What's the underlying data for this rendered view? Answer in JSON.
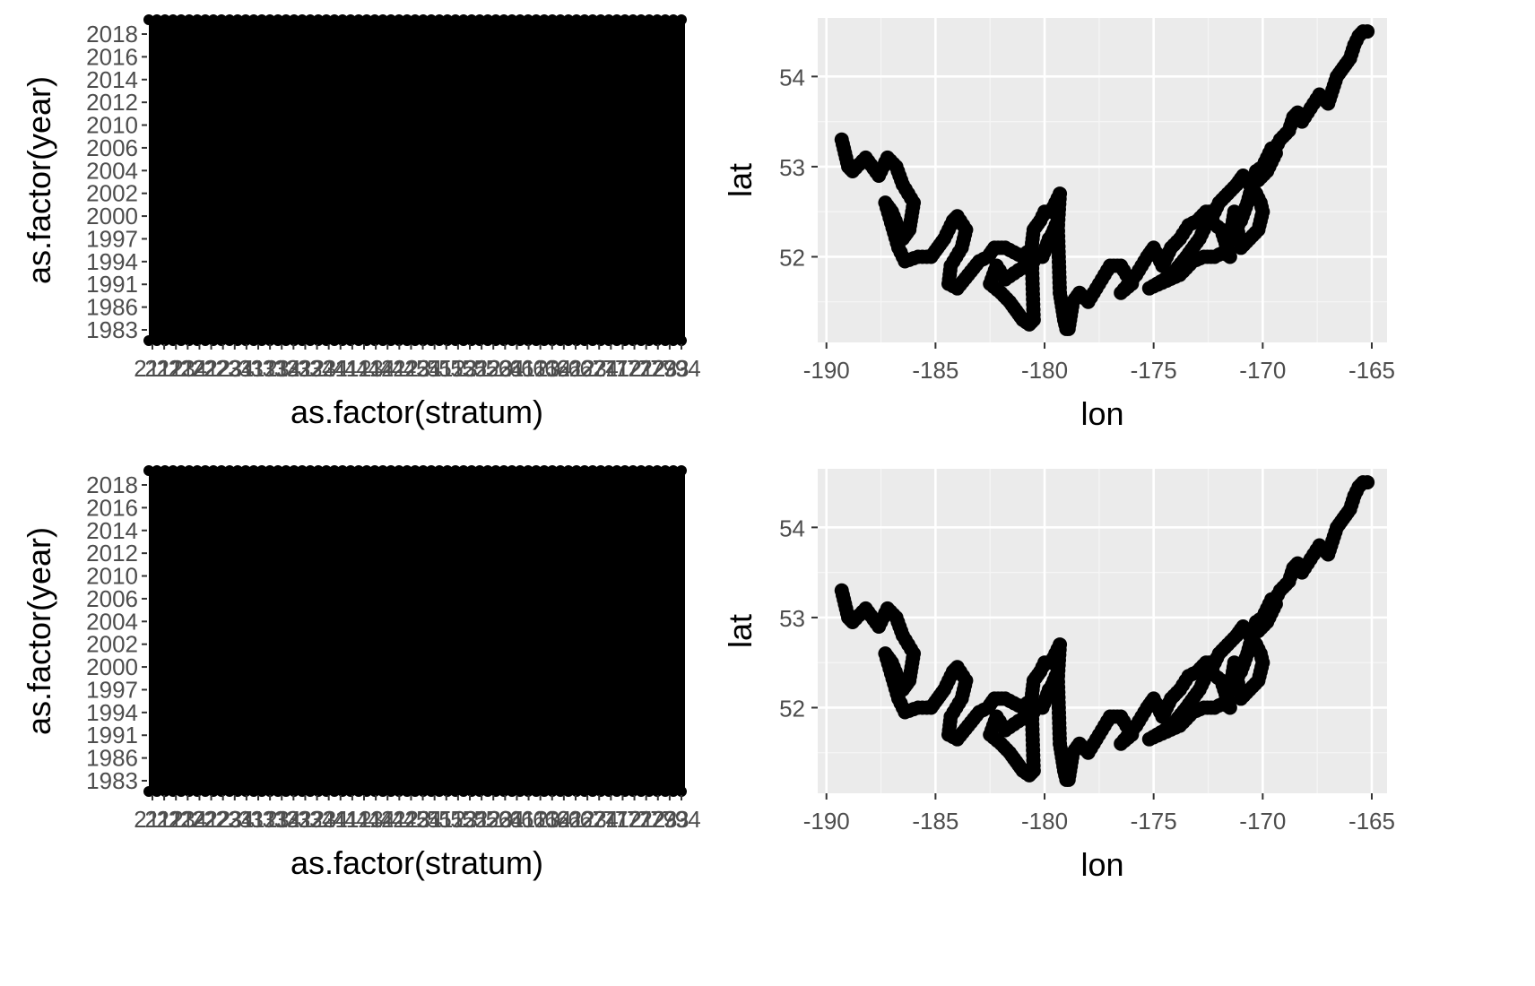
{
  "chart_data": [
    {
      "type": "scatter",
      "panel": "top-left",
      "xlabel": "as.factor(stratum)",
      "ylabel": "as.factor(year)",
      "y_tick_labels": [
        "1983",
        "1986",
        "1991",
        "1994",
        "1997",
        "2000",
        "2002",
        "2004",
        "2006",
        "2010",
        "2012",
        "2014",
        "2016",
        "2018"
      ],
      "x_tick_labels": [
        "211",
        "212",
        "213",
        "214",
        "221",
        "222",
        "223",
        "224",
        "311",
        "312",
        "313",
        "314",
        "321",
        "322",
        "323",
        "324",
        "411",
        "412",
        "413",
        "414",
        "421",
        "422",
        "423",
        "424",
        "511",
        "512",
        "513",
        "521",
        "522",
        "523",
        "524",
        "611",
        "612",
        "613",
        "614",
        "621",
        "622",
        "623",
        "624",
        "711",
        "712",
        "721",
        "722",
        "723",
        "793",
        "794"
      ],
      "x_range_label": [
        "211",
        "794"
      ],
      "note_points_dense": true,
      "background": "#000000",
      "grid": true
    },
    {
      "type": "scatter",
      "panel": "top-right",
      "xlabel": "lon",
      "ylabel": "lat",
      "x_ticks": [
        -190,
        -185,
        -180,
        -175,
        -170,
        -165
      ],
      "y_ticks": [
        52,
        53,
        54
      ],
      "xlim": [
        -190.4,
        -164.3
      ],
      "ylim": [
        51.05,
        54.65
      ],
      "grid": true,
      "background": "#ebebeb",
      "point_color": "#000000",
      "path": [
        [
          -189.3,
          53.3
        ],
        [
          -189.2,
          53.2
        ],
        [
          -189.0,
          53.0
        ],
        [
          -188.8,
          52.95
        ],
        [
          -188.2,
          53.1
        ],
        [
          -187.6,
          52.9
        ],
        [
          -187.2,
          53.1
        ],
        [
          -186.8,
          53.0
        ],
        [
          -186.5,
          52.8
        ],
        [
          -186.0,
          52.6
        ],
        [
          -186.2,
          52.3
        ],
        [
          -186.5,
          52.2
        ],
        [
          -187.0,
          52.5
        ],
        [
          -187.3,
          52.6
        ],
        [
          -186.7,
          52.1
        ],
        [
          -186.4,
          51.95
        ],
        [
          -185.8,
          52.0
        ],
        [
          -185.2,
          52.0
        ],
        [
          -184.9,
          52.1
        ],
        [
          -184.6,
          52.2
        ],
        [
          -184.2,
          52.4
        ],
        [
          -184.0,
          52.45
        ],
        [
          -183.6,
          52.3
        ],
        [
          -183.8,
          52.1
        ],
        [
          -184.3,
          51.9
        ],
        [
          -184.4,
          51.7
        ],
        [
          -184.0,
          51.65
        ],
        [
          -183.5,
          51.8
        ],
        [
          -183.0,
          51.95
        ],
        [
          -182.6,
          52.0
        ],
        [
          -182.3,
          52.1
        ],
        [
          -181.8,
          52.1
        ],
        [
          -181.4,
          52.05
        ],
        [
          -181.0,
          52.0
        ],
        [
          -180.8,
          52.05
        ],
        [
          -180.5,
          51.95
        ],
        [
          -181.2,
          51.85
        ],
        [
          -181.8,
          51.75
        ],
        [
          -182.2,
          51.9
        ],
        [
          -182.5,
          51.7
        ],
        [
          -182.0,
          51.6
        ],
        [
          -181.6,
          51.5
        ],
        [
          -181.3,
          51.4
        ],
        [
          -181.0,
          51.3
        ],
        [
          -180.7,
          51.25
        ],
        [
          -180.5,
          51.3
        ],
        [
          -180.6,
          52.1
        ],
        [
          -180.5,
          52.3
        ],
        [
          -180.2,
          52.4
        ],
        [
          -180.0,
          52.5
        ],
        [
          -179.7,
          52.5
        ],
        [
          -179.5,
          52.6
        ],
        [
          -179.3,
          52.7
        ],
        [
          -179.4,
          52.3
        ],
        [
          -179.8,
          52.2
        ],
        [
          -180.1,
          52.0
        ],
        [
          -179.4,
          52.4
        ],
        [
          -179.3,
          51.6
        ],
        [
          -179.1,
          51.3
        ],
        [
          -179.0,
          51.2
        ],
        [
          -178.9,
          51.2
        ],
        [
          -178.7,
          51.5
        ],
        [
          -178.4,
          51.6
        ],
        [
          -178.0,
          51.5
        ],
        [
          -177.5,
          51.7
        ],
        [
          -177.0,
          51.9
        ],
        [
          -176.5,
          51.9
        ],
        [
          -176.0,
          51.7
        ],
        [
          -176.5,
          51.6
        ],
        [
          -175.8,
          51.8
        ],
        [
          -175.3,
          52.0
        ],
        [
          -175.0,
          52.1
        ],
        [
          -174.6,
          51.9
        ],
        [
          -174.2,
          52.1
        ],
        [
          -173.8,
          52.2
        ],
        [
          -173.4,
          52.35
        ],
        [
          -173.0,
          52.4
        ],
        [
          -172.6,
          52.5
        ],
        [
          -172.3,
          52.5
        ],
        [
          -172.9,
          52.2
        ],
        [
          -173.5,
          52.0
        ],
        [
          -174.0,
          51.85
        ],
        [
          -174.5,
          51.75
        ],
        [
          -175.2,
          51.65
        ],
        [
          -173.8,
          51.8
        ],
        [
          -173.2,
          51.95
        ],
        [
          -172.7,
          52.0
        ],
        [
          -172.2,
          52.0
        ],
        [
          -171.8,
          52.05
        ],
        [
          -171.5,
          52.0
        ],
        [
          -171.9,
          52.3
        ],
        [
          -172.4,
          52.4
        ],
        [
          -172.0,
          52.6
        ],
        [
          -171.6,
          52.7
        ],
        [
          -171.2,
          52.8
        ],
        [
          -170.9,
          52.9
        ],
        [
          -170.6,
          52.8
        ],
        [
          -170.3,
          52.7
        ],
        [
          -170.1,
          52.6
        ],
        [
          -170.0,
          52.5
        ],
        [
          -170.2,
          52.3
        ],
        [
          -170.6,
          52.2
        ],
        [
          -171.0,
          52.1
        ],
        [
          -171.3,
          52.5
        ],
        [
          -171.5,
          52.2
        ],
        [
          -171.0,
          52.4
        ],
        [
          -170.7,
          52.6
        ],
        [
          -170.3,
          52.95
        ],
        [
          -170.0,
          53.0
        ],
        [
          -169.8,
          53.1
        ],
        [
          -169.6,
          53.2
        ],
        [
          -169.4,
          53.15
        ],
        [
          -169.8,
          52.95
        ],
        [
          -170.2,
          52.85
        ],
        [
          -169.2,
          53.3
        ],
        [
          -168.8,
          53.4
        ],
        [
          -168.6,
          53.55
        ],
        [
          -168.4,
          53.6
        ],
        [
          -168.2,
          53.5
        ],
        [
          -167.8,
          53.65
        ],
        [
          -167.4,
          53.8
        ],
        [
          -167.2,
          53.75
        ],
        [
          -167.0,
          53.7
        ],
        [
          -166.6,
          54.0
        ],
        [
          -166.3,
          54.1
        ],
        [
          -166.0,
          54.2
        ],
        [
          -165.8,
          54.35
        ],
        [
          -165.6,
          54.45
        ],
        [
          -165.4,
          54.5
        ],
        [
          -165.2,
          54.5
        ]
      ]
    },
    {
      "type": "scatter",
      "panel": "bottom-left",
      "xlabel": "as.factor(stratum)",
      "ylabel": "as.factor(year)",
      "y_tick_labels": [
        "1983",
        "1986",
        "1991",
        "1994",
        "1997",
        "2000",
        "2002",
        "2004",
        "2006",
        "2010",
        "2012",
        "2014",
        "2016",
        "2018"
      ],
      "x_tick_labels": [
        "211",
        "212",
        "213",
        "214",
        "221",
        "222",
        "223",
        "224",
        "311",
        "312",
        "313",
        "314",
        "321",
        "322",
        "323",
        "324",
        "411",
        "412",
        "413",
        "414",
        "421",
        "422",
        "423",
        "424",
        "511",
        "512",
        "513",
        "521",
        "522",
        "523",
        "524",
        "611",
        "612",
        "613",
        "614",
        "621",
        "622",
        "623",
        "624",
        "711",
        "712",
        "721",
        "722",
        "723",
        "793",
        "794"
      ],
      "x_range_label": [
        "211",
        "794"
      ],
      "note_points_dense": true,
      "background": "#000000",
      "grid": true
    },
    {
      "type": "scatter",
      "panel": "bottom-right",
      "xlabel": "lon",
      "ylabel": "lat",
      "x_ticks": [
        -190,
        -185,
        -180,
        -175,
        -170,
        -165
      ],
      "y_ticks": [
        52,
        53,
        54
      ],
      "xlim": [
        -190.4,
        -164.3
      ],
      "ylim": [
        51.05,
        54.65
      ],
      "grid": true,
      "background": "#ebebeb",
      "point_color": "#000000",
      "path": "same_as_top_right"
    }
  ]
}
